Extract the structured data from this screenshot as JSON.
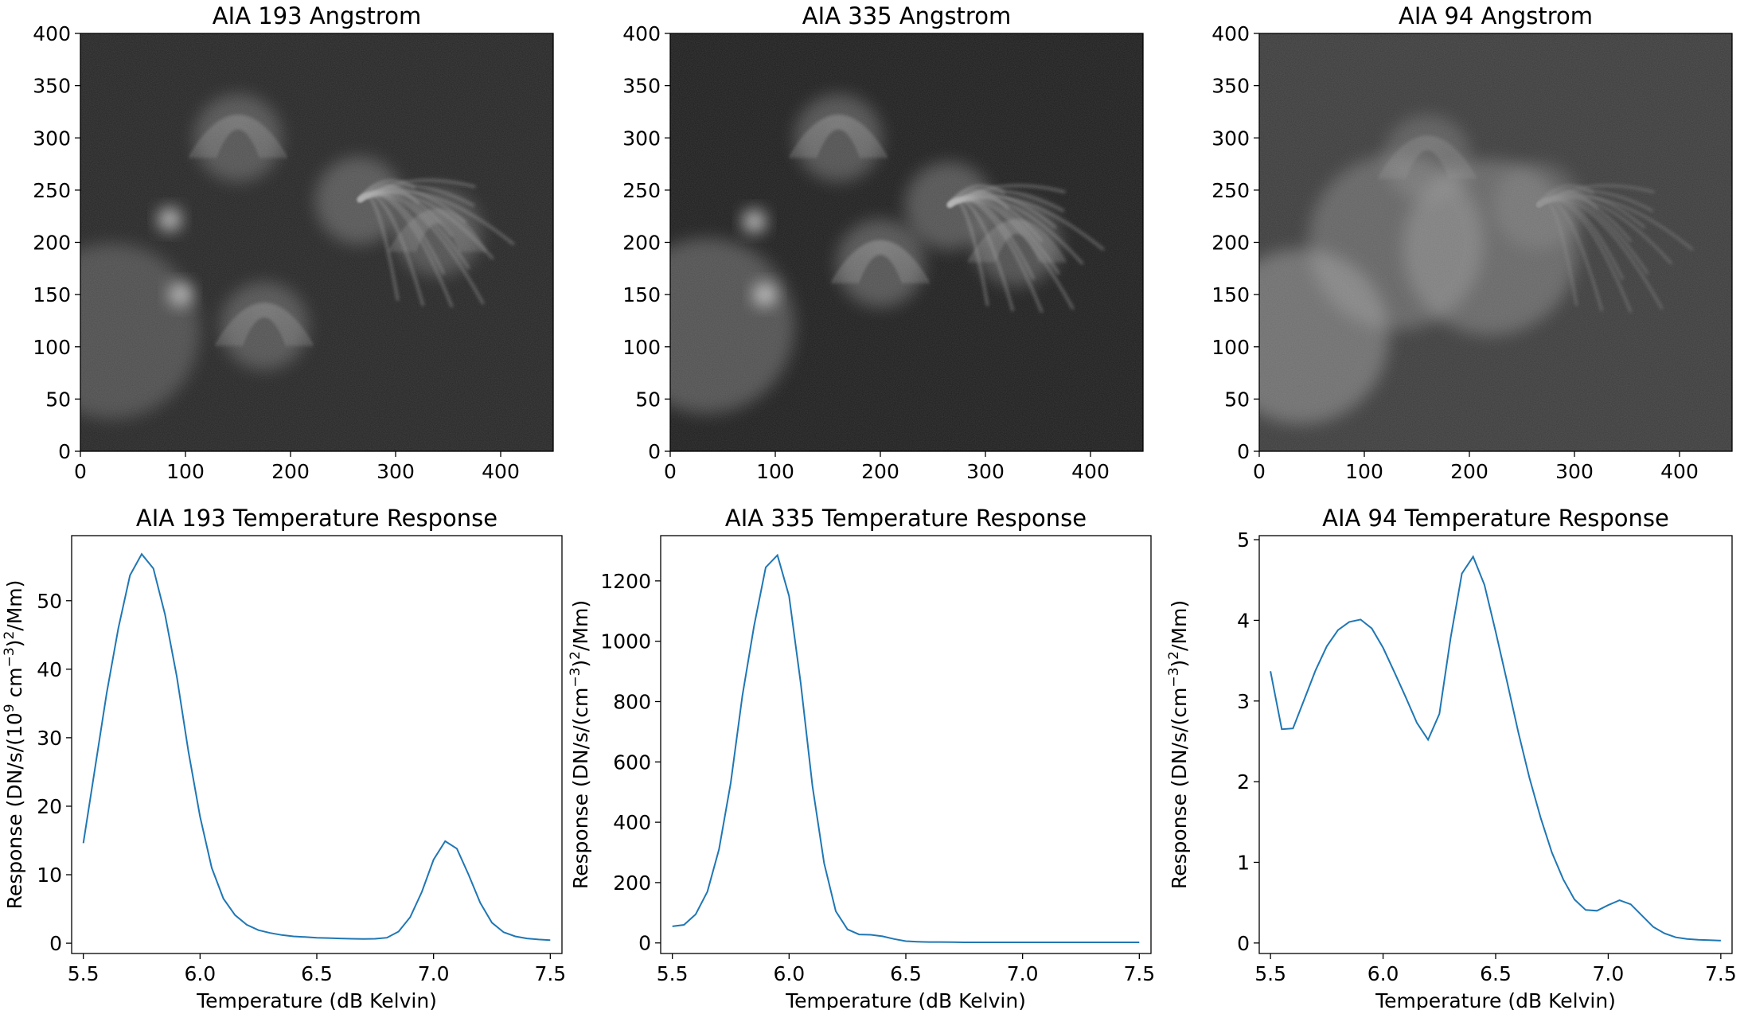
{
  "chart_data": [
    {
      "type": "heatmap",
      "title": "AIA 193 Angstrom",
      "xlim": [
        0,
        450
      ],
      "ylim": [
        0,
        400
      ],
      "xticks": [
        0,
        100,
        200,
        300,
        400
      ],
      "yticks": [
        0,
        50,
        100,
        150,
        200,
        250,
        300,
        350,
        400
      ],
      "colormap": "gray",
      "background": "#262626",
      "features": [
        {
          "x": 265,
          "y": 240,
          "kind": "fan",
          "brightness": 0.55
        },
        {
          "x": 150,
          "y": 300,
          "kind": "loops",
          "brightness": 0.5
        },
        {
          "x": 95,
          "y": 150,
          "kind": "bright-patch",
          "brightness": 0.85
        },
        {
          "x": 85,
          "y": 222,
          "kind": "bright-patch",
          "brightness": 0.75
        },
        {
          "x": 30,
          "y": 115,
          "kind": "glow",
          "brightness": 0.4
        },
        {
          "x": 175,
          "y": 120,
          "kind": "loops",
          "brightness": 0.5
        },
        {
          "x": 340,
          "y": 210,
          "kind": "loops",
          "brightness": 0.45
        }
      ]
    },
    {
      "type": "heatmap",
      "title": "AIA 335 Angstrom",
      "xlim": [
        0,
        450
      ],
      "ylim": [
        0,
        400
      ],
      "xticks": [
        0,
        100,
        200,
        300,
        400
      ],
      "yticks": [
        0,
        50,
        100,
        150,
        200,
        250,
        300,
        350,
        400
      ],
      "colormap": "gray",
      "background": "#1e1e1e",
      "features": [
        {
          "x": 265,
          "y": 235,
          "kind": "fan",
          "brightness": 0.6
        },
        {
          "x": 160,
          "y": 300,
          "kind": "loops",
          "brightness": 0.55
        },
        {
          "x": 90,
          "y": 150,
          "kind": "bright-patch",
          "brightness": 0.9
        },
        {
          "x": 80,
          "y": 220,
          "kind": "bright-patch",
          "brightness": 0.75
        },
        {
          "x": 35,
          "y": 120,
          "kind": "glow",
          "brightness": 0.55
        },
        {
          "x": 200,
          "y": 180,
          "kind": "loops",
          "brightness": 0.6
        },
        {
          "x": 330,
          "y": 200,
          "kind": "loops",
          "brightness": 0.5
        }
      ]
    },
    {
      "type": "heatmap",
      "title": "AIA 94 Angstrom",
      "xlim": [
        0,
        450
      ],
      "ylim": [
        0,
        400
      ],
      "xticks": [
        0,
        100,
        200,
        300,
        400
      ],
      "yticks": [
        0,
        50,
        100,
        150,
        200,
        250,
        300,
        350,
        400
      ],
      "colormap": "gray",
      "background": "#3c3c3c",
      "features": [
        {
          "x": 40,
          "y": 110,
          "kind": "glow",
          "brightness": 0.75
        },
        {
          "x": 220,
          "y": 195,
          "kind": "glow",
          "brightness": 0.6
        },
        {
          "x": 130,
          "y": 200,
          "kind": "glow",
          "brightness": 0.55
        },
        {
          "x": 265,
          "y": 235,
          "kind": "fan",
          "brightness": 0.35
        },
        {
          "x": 160,
          "y": 280,
          "kind": "loops",
          "brightness": 0.4
        }
      ]
    },
    {
      "type": "line",
      "title": "AIA 193 Temperature Response",
      "xlabel": "Temperature (dB Kelvin)",
      "ylabel_parts": [
        "Response (DN/s/(10",
        "9",
        " cm",
        "−3",
        ")",
        "2",
        "/Mm)"
      ],
      "xlim": [
        5.45,
        7.55
      ],
      "ylim": [
        -1.5,
        59.5
      ],
      "xticks": [
        5.5,
        6.0,
        6.5,
        7.0,
        7.5
      ],
      "yticks": [
        0,
        10,
        20,
        30,
        40,
        50
      ],
      "color": "#1f77b4",
      "x": [
        5.5,
        5.55,
        5.6,
        5.65,
        5.7,
        5.75,
        5.8,
        5.85,
        5.9,
        5.95,
        6.0,
        6.05,
        6.1,
        6.15,
        6.2,
        6.25,
        6.3,
        6.35,
        6.4,
        6.45,
        6.5,
        6.55,
        6.6,
        6.65,
        6.7,
        6.75,
        6.8,
        6.85,
        6.9,
        6.95,
        7.0,
        7.05,
        7.1,
        7.15,
        7.2,
        7.25,
        7.3,
        7.35,
        7.4,
        7.45,
        7.5
      ],
      "y": [
        14.6,
        25.5,
        36.5,
        46.0,
        53.7,
        56.8,
        54.7,
        48.0,
        39.0,
        28.0,
        18.5,
        11.0,
        6.5,
        4.1,
        2.7,
        1.9,
        1.5,
        1.2,
        1.0,
        0.9,
        0.8,
        0.75,
        0.7,
        0.65,
        0.62,
        0.65,
        0.8,
        1.7,
        3.8,
        7.5,
        12.2,
        14.9,
        13.8,
        10.0,
        5.9,
        3.0,
        1.6,
        1.0,
        0.7,
        0.55,
        0.45
      ]
    },
    {
      "type": "line",
      "title": "AIA 335 Temperature Response",
      "xlabel": "Temperature (dB Kelvin)",
      "ylabel_parts": [
        "Response (DN/s/(cm",
        "−3",
        ")",
        "2",
        "/Mm)"
      ],
      "xlim": [
        5.45,
        7.55
      ],
      "ylim": [
        -35,
        1350
      ],
      "xticks": [
        5.5,
        6.0,
        6.5,
        7.0,
        7.5
      ],
      "yticks": [
        0,
        200,
        400,
        600,
        800,
        1000,
        1200
      ],
      "color": "#1f77b4",
      "x": [
        5.5,
        5.55,
        5.6,
        5.65,
        5.7,
        5.75,
        5.8,
        5.85,
        5.9,
        5.95,
        6.0,
        6.05,
        6.1,
        6.15,
        6.2,
        6.25,
        6.3,
        6.35,
        6.4,
        6.45,
        6.5,
        6.55,
        6.6,
        6.65,
        6.7,
        6.75,
        6.8,
        6.85,
        6.9,
        6.95,
        7.0,
        7.05,
        7.1,
        7.15,
        7.2,
        7.25,
        7.3,
        7.35,
        7.4,
        7.45,
        7.5
      ],
      "y": [
        55,
        60,
        95,
        170,
        310,
        530,
        820,
        1050,
        1245,
        1285,
        1150,
        860,
        520,
        265,
        105,
        45,
        28,
        27,
        22,
        13,
        6,
        4,
        3,
        3,
        2.5,
        2,
        2,
        2,
        2,
        2,
        2,
        2,
        2,
        2,
        2,
        2,
        2,
        2,
        2,
        2,
        2
      ]
    },
    {
      "type": "line",
      "title": "AIA 94 Temperature Response",
      "xlabel": "Temperature (dB Kelvin)",
      "ylabel_parts": [
        "Response (DN/s/(cm",
        "−3",
        ")",
        "2",
        "/Mm)"
      ],
      "xlim": [
        5.45,
        7.55
      ],
      "ylim": [
        -0.13,
        5.05
      ],
      "xticks": [
        5.5,
        6.0,
        6.5,
        7.0,
        7.5
      ],
      "yticks": [
        0,
        1,
        2,
        3,
        4,
        5
      ],
      "color": "#1f77b4",
      "x": [
        5.5,
        5.55,
        5.6,
        5.65,
        5.7,
        5.75,
        5.8,
        5.85,
        5.9,
        5.95,
        6.0,
        6.05,
        6.1,
        6.15,
        6.2,
        6.25,
        6.3,
        6.35,
        6.4,
        6.45,
        6.5,
        6.55,
        6.6,
        6.65,
        6.7,
        6.75,
        6.8,
        6.85,
        6.9,
        6.95,
        7.0,
        7.05,
        7.1,
        7.15,
        7.2,
        7.25,
        7.3,
        7.35,
        7.4,
        7.45,
        7.5
      ],
      "y": [
        3.37,
        2.65,
        2.66,
        3.02,
        3.38,
        3.68,
        3.88,
        3.98,
        4.01,
        3.9,
        3.66,
        3.36,
        3.05,
        2.73,
        2.52,
        2.84,
        3.78,
        4.58,
        4.79,
        4.44,
        3.86,
        3.25,
        2.62,
        2.05,
        1.55,
        1.12,
        0.79,
        0.54,
        0.41,
        0.4,
        0.47,
        0.53,
        0.48,
        0.34,
        0.2,
        0.12,
        0.07,
        0.05,
        0.04,
        0.035,
        0.03
      ]
    }
  ]
}
